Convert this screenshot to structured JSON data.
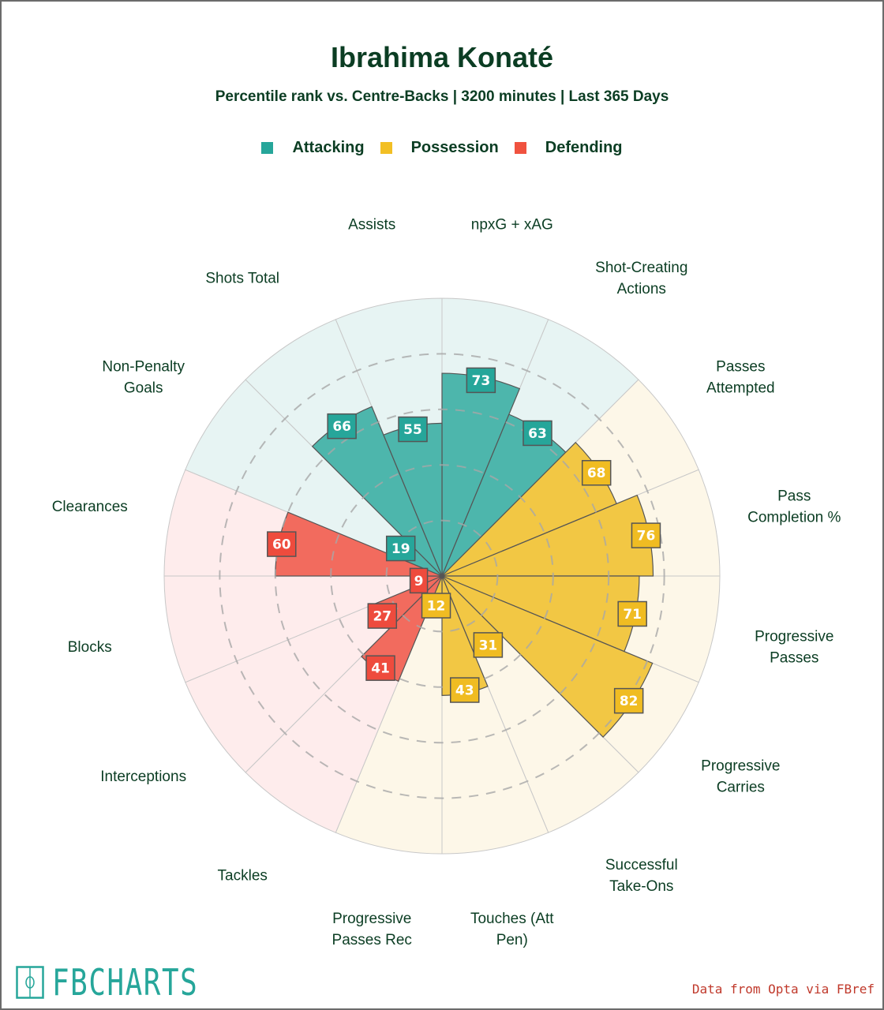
{
  "chart_data": {
    "type": "polar-bar",
    "title": "Ibrahima Konaté",
    "subtitle": "Percentile rank vs. Centre-Backs | 3200 minutes | Last 365 Days",
    "rlim": [
      0,
      100
    ],
    "rings": [
      20,
      40,
      60,
      80
    ],
    "legend": [
      {
        "name": "Attacking",
        "color": "#26a69a"
      },
      {
        "name": "Possession",
        "color": "#f2bf24"
      },
      {
        "name": "Defending",
        "color": "#f0523f"
      }
    ],
    "legend_position": "top-center",
    "categories": [
      {
        "label": "npxG + xAG",
        "value": 73,
        "group": "Attacking"
      },
      {
        "label": "Shot-Creating Actions",
        "value": 63,
        "group": "Attacking"
      },
      {
        "label": "Passes Attempted",
        "value": 68,
        "group": "Possession"
      },
      {
        "label": "Pass Completion %",
        "value": 76,
        "group": "Possession"
      },
      {
        "label": "Progressive Passes",
        "value": 71,
        "group": "Possession"
      },
      {
        "label": "Progressive Carries",
        "value": 82,
        "group": "Possession"
      },
      {
        "label": "Successful Take-Ons",
        "value": 31,
        "group": "Possession"
      },
      {
        "label": "Touches (Att Pen)",
        "value": 43,
        "group": "Possession"
      },
      {
        "label": "Progressive Passes Rec",
        "value": 12,
        "group": "Possession"
      },
      {
        "label": "Tackles",
        "value": 41,
        "group": "Defending"
      },
      {
        "label": "Interceptions",
        "value": 27,
        "group": "Defending"
      },
      {
        "label": "Blocks",
        "value": 9,
        "group": "Defending"
      },
      {
        "label": "Clearances",
        "value": 60,
        "group": "Defending"
      },
      {
        "label": "Non-Penalty Goals",
        "value": 19,
        "group": "Attacking"
      },
      {
        "label": "Shots Total",
        "value": 66,
        "group": "Attacking"
      },
      {
        "label": "Assists",
        "value": 55,
        "group": "Attacking"
      }
    ]
  },
  "labels_wrapped": [
    [
      "npxG + xAG"
    ],
    [
      "Shot-Creating",
      "Actions"
    ],
    [
      "Passes",
      "Attempted"
    ],
    [
      "Pass",
      "Completion %"
    ],
    [
      "Progressive",
      "Passes"
    ],
    [
      "Progressive",
      "Carries"
    ],
    [
      "Successful",
      "Take-Ons"
    ],
    [
      "Touches (Att",
      "Pen)"
    ],
    [
      "Progressive",
      "Passes Rec"
    ],
    [
      "Tackles"
    ],
    [
      "Interceptions"
    ],
    [
      "Blocks"
    ],
    [
      "Clearances"
    ],
    [
      "Non-Penalty",
      "Goals"
    ],
    [
      "Shots Total"
    ],
    [
      "Assists"
    ]
  ],
  "colors": {
    "Attacking": {
      "bar": "#4db6ac",
      "bg": "#e7f4f3",
      "box": "#26a69a"
    },
    "Possession": {
      "bar": "#f2c744",
      "bg": "#fdf7e8",
      "box": "#f0bc22"
    },
    "Defending": {
      "bar": "#f26b5e",
      "bg": "#feecec",
      "box": "#ee4b3d"
    }
  },
  "brand": {
    "logo_text": "FBCHARTS",
    "source": "Data from Opta via FBref"
  }
}
